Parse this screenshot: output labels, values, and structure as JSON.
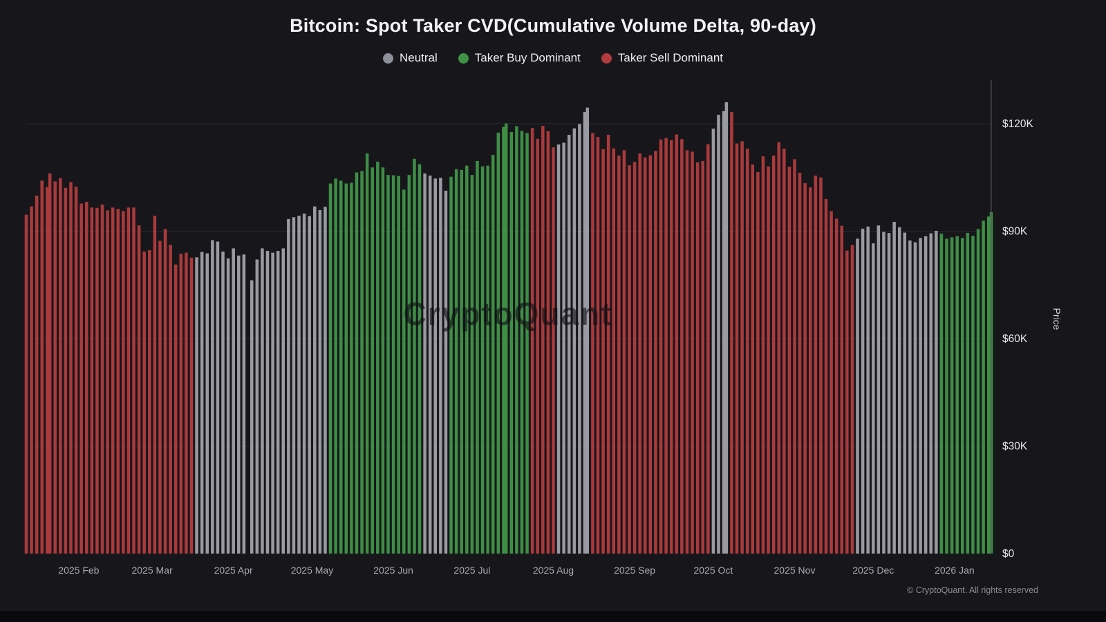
{
  "title": "Bitcoin: Spot Taker CVD(Cumulative Volume Delta, 90-day)",
  "legend": [
    {
      "label": "Neutral",
      "color": "#8f8f99",
      "key": "neutral"
    },
    {
      "label": "Taker Buy Dominant",
      "color": "#3f9145",
      "key": "buy"
    },
    {
      "label": "Taker Sell Dominant",
      "color": "#b13b3e",
      "key": "sell"
    }
  ],
  "watermark": "CryptoQuant",
  "footer": "© CryptoQuant. All rights reserved",
  "chart_data": {
    "type": "bar",
    "title": "Bitcoin: Spot Taker CVD(Cumulative Volume Delta, 90-day)",
    "xlabel": "",
    "ylabel": "Price",
    "y_unit": "USD (thousands)",
    "ylim": [
      0,
      131
    ],
    "grid": true,
    "legend_position": "top",
    "y_ticks": [
      {
        "v": 0,
        "label": "$0"
      },
      {
        "v": 30,
        "label": "$30K"
      },
      {
        "v": 60,
        "label": "$60K"
      },
      {
        "v": 90,
        "label": "$90K"
      },
      {
        "v": 120,
        "label": "$120K"
      }
    ],
    "months": [
      {
        "date": "2025-02-01",
        "label": "2025 Feb"
      },
      {
        "date": "2025-03-01",
        "label": "2025 Mar"
      },
      {
        "date": "2025-04-01",
        "label": "2025 Apr"
      },
      {
        "date": "2025-05-01",
        "label": "2025 May"
      },
      {
        "date": "2025-06-01",
        "label": "2025 Jun"
      },
      {
        "date": "2025-07-01",
        "label": "2025 Jul"
      },
      {
        "date": "2025-08-01",
        "label": "2025 Aug"
      },
      {
        "date": "2025-09-01",
        "label": "2025 Sep"
      },
      {
        "date": "2025-10-01",
        "label": "2025 Oct"
      },
      {
        "date": "2025-11-01",
        "label": "2025 Nov"
      },
      {
        "date": "2025-12-01",
        "label": "2025 Dec"
      },
      {
        "date": "2026-01-01",
        "label": "2026 Jan"
      }
    ],
    "color_keys": {
      "n": "neutral",
      "b": "buy",
      "s": "sell"
    },
    "colors": {
      "neutral": "#9a9aa2",
      "buy": "#3e8e45",
      "sell": "#ab3a3c"
    },
    "points": [
      [
        "2025-01-12",
        94.6,
        "s"
      ],
      [
        "2025-01-14",
        96.9,
        "s"
      ],
      [
        "2025-01-16",
        99.9,
        "s"
      ],
      [
        "2025-01-18",
        104.1,
        "s"
      ],
      [
        "2025-01-20",
        102.3,
        "s"
      ],
      [
        "2025-01-21",
        106.1,
        "s"
      ],
      [
        "2025-01-23",
        103.9,
        "s"
      ],
      [
        "2025-01-25",
        104.8,
        "s"
      ],
      [
        "2025-01-27",
        102.1,
        "s"
      ],
      [
        "2025-01-29",
        103.7,
        "s"
      ],
      [
        "2025-01-31",
        102.4,
        "s"
      ],
      [
        "2025-02-02",
        97.7,
        "s"
      ],
      [
        "2025-02-04",
        98.2,
        "s"
      ],
      [
        "2025-02-06",
        96.6,
        "s"
      ],
      [
        "2025-02-08",
        96.5,
        "s"
      ],
      [
        "2025-02-10",
        97.4,
        "s"
      ],
      [
        "2025-02-12",
        95.8,
        "s"
      ],
      [
        "2025-02-14",
        96.6,
        "s"
      ],
      [
        "2025-02-16",
        96.2,
        "s"
      ],
      [
        "2025-02-18",
        95.6,
        "s"
      ],
      [
        "2025-02-20",
        96.6,
        "s"
      ],
      [
        "2025-02-22",
        96.6,
        "s"
      ],
      [
        "2025-02-24",
        91.6,
        "s"
      ],
      [
        "2025-02-26",
        84.3,
        "s"
      ],
      [
        "2025-02-28",
        84.7,
        "s"
      ],
      [
        "2025-03-02",
        94.3,
        "s"
      ],
      [
        "2025-03-04",
        87.3,
        "s"
      ],
      [
        "2025-03-06",
        90.6,
        "s"
      ],
      [
        "2025-03-08",
        86.2,
        "s"
      ],
      [
        "2025-03-10",
        80.7,
        "s"
      ],
      [
        "2025-03-12",
        83.7,
        "s"
      ],
      [
        "2025-03-14",
        84.0,
        "s"
      ],
      [
        "2025-03-16",
        82.6,
        "s"
      ],
      [
        "2025-03-18",
        82.7,
        "n"
      ],
      [
        "2025-03-20",
        84.2,
        "n"
      ],
      [
        "2025-03-22",
        83.8,
        "n"
      ],
      [
        "2025-03-24",
        87.5,
        "n"
      ],
      [
        "2025-03-26",
        87.1,
        "n"
      ],
      [
        "2025-03-28",
        84.3,
        "n"
      ],
      [
        "2025-03-30",
        82.4,
        "n"
      ],
      [
        "2025-04-01",
        85.2,
        "n"
      ],
      [
        "2025-04-03",
        83.2,
        "n"
      ],
      [
        "2025-04-05",
        83.5,
        "n"
      ],
      [
        "2025-04-08",
        76.3,
        "n"
      ],
      [
        "2025-04-10",
        82.1,
        "n"
      ],
      [
        "2025-04-12",
        85.2,
        "n"
      ],
      [
        "2025-04-14",
        84.5,
        "n"
      ],
      [
        "2025-04-16",
        84.0,
        "n"
      ],
      [
        "2025-04-18",
        84.5,
        "n"
      ],
      [
        "2025-04-20",
        85.2,
        "n"
      ],
      [
        "2025-04-22",
        93.4,
        "n"
      ],
      [
        "2025-04-24",
        93.9,
        "n"
      ],
      [
        "2025-04-26",
        94.3,
        "n"
      ],
      [
        "2025-04-28",
        94.9,
        "n"
      ],
      [
        "2025-04-30",
        94.2,
        "n"
      ],
      [
        "2025-05-02",
        96.9,
        "n"
      ],
      [
        "2025-05-04",
        95.9,
        "n"
      ],
      [
        "2025-05-06",
        96.8,
        "n"
      ],
      [
        "2025-05-08",
        103.3,
        "b"
      ],
      [
        "2025-05-10",
        104.7,
        "b"
      ],
      [
        "2025-05-12",
        104.1,
        "b"
      ],
      [
        "2025-05-14",
        103.3,
        "b"
      ],
      [
        "2025-05-16",
        103.5,
        "b"
      ],
      [
        "2025-05-18",
        106.4,
        "b"
      ],
      [
        "2025-05-20",
        106.8,
        "b"
      ],
      [
        "2025-05-22",
        111.7,
        "b"
      ],
      [
        "2025-05-24",
        107.8,
        "b"
      ],
      [
        "2025-05-26",
        109.4,
        "b"
      ],
      [
        "2025-05-28",
        107.8,
        "b"
      ],
      [
        "2025-05-30",
        105.7,
        "b"
      ],
      [
        "2025-06-01",
        105.6,
        "b"
      ],
      [
        "2025-06-03",
        105.4,
        "b"
      ],
      [
        "2025-06-05",
        101.6,
        "b"
      ],
      [
        "2025-06-07",
        105.7,
        "b"
      ],
      [
        "2025-06-09",
        110.2,
        "b"
      ],
      [
        "2025-06-11",
        108.7,
        "b"
      ],
      [
        "2025-06-13",
        106.1,
        "n"
      ],
      [
        "2025-06-15",
        105.5,
        "n"
      ],
      [
        "2025-06-17",
        104.7,
        "n"
      ],
      [
        "2025-06-19",
        104.9,
        "n"
      ],
      [
        "2025-06-21",
        101.3,
        "n"
      ],
      [
        "2025-06-23",
        105.2,
        "b"
      ],
      [
        "2025-06-25",
        107.3,
        "b"
      ],
      [
        "2025-06-27",
        107.1,
        "b"
      ],
      [
        "2025-06-29",
        108.3,
        "b"
      ],
      [
        "2025-07-01",
        105.7,
        "b"
      ],
      [
        "2025-07-03",
        109.6,
        "b"
      ],
      [
        "2025-07-05",
        108.1,
        "b"
      ],
      [
        "2025-07-07",
        108.3,
        "b"
      ],
      [
        "2025-07-09",
        111.3,
        "b"
      ],
      [
        "2025-07-11",
        117.5,
        "b"
      ],
      [
        "2025-07-13",
        119.1,
        "b"
      ],
      [
        "2025-07-14",
        120.1,
        "b"
      ],
      [
        "2025-07-16",
        117.7,
        "b"
      ],
      [
        "2025-07-18",
        119.3,
        "b"
      ],
      [
        "2025-07-20",
        118.0,
        "b"
      ],
      [
        "2025-07-22",
        117.4,
        "b"
      ],
      [
        "2025-07-24",
        118.8,
        "s"
      ],
      [
        "2025-07-26",
        115.8,
        "s"
      ],
      [
        "2025-07-28",
        119.4,
        "s"
      ],
      [
        "2025-07-30",
        117.9,
        "s"
      ],
      [
        "2025-08-01",
        113.4,
        "s"
      ],
      [
        "2025-08-03",
        114.2,
        "n"
      ],
      [
        "2025-08-05",
        114.7,
        "n"
      ],
      [
        "2025-08-07",
        116.9,
        "n"
      ],
      [
        "2025-08-09",
        118.7,
        "n"
      ],
      [
        "2025-08-11",
        119.9,
        "n"
      ],
      [
        "2025-08-13",
        123.3,
        "n"
      ],
      [
        "2025-08-14",
        124.5,
        "n"
      ],
      [
        "2025-08-16",
        117.4,
        "s"
      ],
      [
        "2025-08-18",
        116.3,
        "s"
      ],
      [
        "2025-08-20",
        112.9,
        "s"
      ],
      [
        "2025-08-22",
        116.9,
        "s"
      ],
      [
        "2025-08-24",
        113.1,
        "s"
      ],
      [
        "2025-08-26",
        111.1,
        "s"
      ],
      [
        "2025-08-28",
        112.6,
        "s"
      ],
      [
        "2025-08-30",
        108.4,
        "s"
      ],
      [
        "2025-09-01",
        109.3,
        "s"
      ],
      [
        "2025-09-03",
        111.7,
        "s"
      ],
      [
        "2025-09-05",
        110.6,
        "s"
      ],
      [
        "2025-09-07",
        111.2,
        "s"
      ],
      [
        "2025-09-09",
        112.4,
        "s"
      ],
      [
        "2025-09-11",
        115.6,
        "s"
      ],
      [
        "2025-09-13",
        116.0,
        "s"
      ],
      [
        "2025-09-15",
        115.4,
        "s"
      ],
      [
        "2025-09-17",
        117.0,
        "s"
      ],
      [
        "2025-09-19",
        115.7,
        "s"
      ],
      [
        "2025-09-21",
        112.6,
        "s"
      ],
      [
        "2025-09-23",
        112.2,
        "s"
      ],
      [
        "2025-09-25",
        109.2,
        "s"
      ],
      [
        "2025-09-27",
        109.6,
        "s"
      ],
      [
        "2025-09-29",
        114.3,
        "s"
      ],
      [
        "2025-10-01",
        118.6,
        "n"
      ],
      [
        "2025-10-03",
        122.5,
        "n"
      ],
      [
        "2025-10-05",
        123.5,
        "n"
      ],
      [
        "2025-10-06",
        126.0,
        "n"
      ],
      [
        "2025-10-08",
        123.3,
        "s"
      ],
      [
        "2025-10-10",
        114.5,
        "s"
      ],
      [
        "2025-10-12",
        115.1,
        "s"
      ],
      [
        "2025-10-14",
        113.0,
        "s"
      ],
      [
        "2025-10-16",
        108.6,
        "s"
      ],
      [
        "2025-10-18",
        106.5,
        "s"
      ],
      [
        "2025-10-20",
        110.9,
        "s"
      ],
      [
        "2025-10-22",
        108.1,
        "s"
      ],
      [
        "2025-10-24",
        111.1,
        "s"
      ],
      [
        "2025-10-26",
        114.8,
        "s"
      ],
      [
        "2025-10-28",
        113.0,
        "s"
      ],
      [
        "2025-10-30",
        108.0,
        "s"
      ],
      [
        "2025-11-01",
        110.1,
        "s"
      ],
      [
        "2025-11-03",
        106.3,
        "s"
      ],
      [
        "2025-11-05",
        103.4,
        "s"
      ],
      [
        "2025-11-07",
        102.2,
        "s"
      ],
      [
        "2025-11-09",
        105.5,
        "s"
      ],
      [
        "2025-11-11",
        105.0,
        "s"
      ],
      [
        "2025-11-13",
        99.0,
        "s"
      ],
      [
        "2025-11-15",
        95.6,
        "s"
      ],
      [
        "2025-11-17",
        93.5,
        "s"
      ],
      [
        "2025-11-19",
        91.5,
        "s"
      ],
      [
        "2025-11-21",
        84.6,
        "s"
      ],
      [
        "2025-11-23",
        86.1,
        "s"
      ],
      [
        "2025-11-25",
        87.9,
        "n"
      ],
      [
        "2025-11-27",
        90.7,
        "n"
      ],
      [
        "2025-11-29",
        91.3,
        "n"
      ],
      [
        "2025-12-01",
        86.6,
        "n"
      ],
      [
        "2025-12-03",
        91.6,
        "n"
      ],
      [
        "2025-12-05",
        89.8,
        "n"
      ],
      [
        "2025-12-07",
        89.5,
        "n"
      ],
      [
        "2025-12-09",
        92.6,
        "n"
      ],
      [
        "2025-12-11",
        91.1,
        "n"
      ],
      [
        "2025-12-13",
        89.6,
        "n"
      ],
      [
        "2025-12-15",
        87.4,
        "n"
      ],
      [
        "2025-12-17",
        86.9,
        "n"
      ],
      [
        "2025-12-19",
        88.1,
        "n"
      ],
      [
        "2025-12-21",
        88.6,
        "n"
      ],
      [
        "2025-12-23",
        89.4,
        "n"
      ],
      [
        "2025-12-25",
        90.1,
        "n"
      ],
      [
        "2025-12-27",
        89.3,
        "b"
      ],
      [
        "2025-12-29",
        87.9,
        "b"
      ],
      [
        "2025-12-31",
        88.3,
        "b"
      ],
      [
        "2026-01-02",
        88.6,
        "b"
      ],
      [
        "2026-01-04",
        88.1,
        "b"
      ],
      [
        "2026-01-06",
        89.5,
        "b"
      ],
      [
        "2026-01-08",
        88.7,
        "b"
      ],
      [
        "2026-01-10",
        90.6,
        "b"
      ],
      [
        "2026-01-12",
        92.9,
        "b"
      ],
      [
        "2026-01-14",
        94.1,
        "b"
      ],
      [
        "2026-01-15",
        95.3,
        "b"
      ]
    ]
  }
}
